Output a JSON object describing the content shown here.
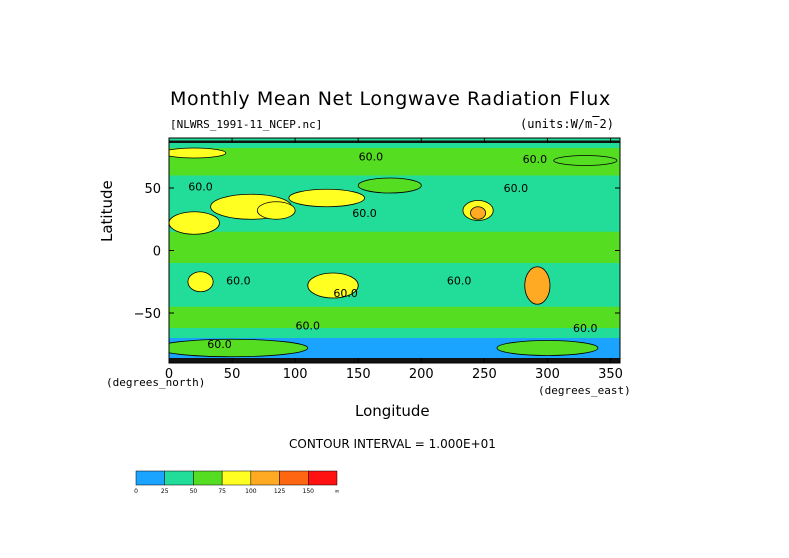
{
  "chart_data": {
    "type": "heatmap",
    "title": "Monthly Mean Net Longwave Radiation Flux",
    "subtitle_left": "[NLWRS_1991-11_NCEP.nc]",
    "units_text": "(units:W/m^-2)",
    "xlabel": "Longitude",
    "ylabel": "Latitude",
    "x_units_text": "(degrees_east)",
    "y_units_text": "(degrees_north)",
    "xlim": [
      0,
      357.5
    ],
    "ylim": [
      -90,
      90
    ],
    "x_ticks": [
      0,
      50,
      100,
      150,
      200,
      250,
      300,
      350
    ],
    "y_ticks": [
      50,
      0,
      -50
    ],
    "y_tick_labels": [
      "50",
      "0",
      "−50"
    ],
    "contour_interval_text": "CONTOUR INTERVAL = 1.000E+01",
    "contour_labels": [
      {
        "lon": 25,
        "lat": 48,
        "text": "60.0"
      },
      {
        "lon": 160,
        "lat": 72,
        "text": "60.0"
      },
      {
        "lon": 290,
        "lat": 70,
        "text": "60.0"
      },
      {
        "lon": 275,
        "lat": 47,
        "text": "60.0"
      },
      {
        "lon": 155,
        "lat": 27,
        "text": "60.0"
      },
      {
        "lon": 55,
        "lat": -27,
        "text": "60.0"
      },
      {
        "lon": 140,
        "lat": -37,
        "text": "60.0"
      },
      {
        "lon": 230,
        "lat": -27,
        "text": "60.0"
      },
      {
        "lon": 110,
        "lat": -63,
        "text": "60.0"
      },
      {
        "lon": 40,
        "lat": -78,
        "text": "60.0"
      },
      {
        "lon": 330,
        "lat": -65,
        "text": "60.0"
      }
    ],
    "colorbar": {
      "levels": [
        "0",
        "25",
        "50",
        "75",
        "100",
        "125",
        "150",
        "∞"
      ],
      "colors": [
        "#1aa3ff",
        "#22dd99",
        "#55dd22",
        "#ffff22",
        "#ffaa22",
        "#ff6611",
        "#ff1111"
      ]
    },
    "fields": [
      {
        "value": 40,
        "shape": "band",
        "lat_min": -90,
        "lat_max": 90
      },
      {
        "value": 55,
        "shape": "band",
        "lat_min": 60,
        "lat_max": 82
      },
      {
        "value": 55,
        "shape": "band",
        "lat_min": -10,
        "lat_max": 15
      },
      {
        "value": 55,
        "shape": "band",
        "lat_min": -62,
        "lat_max": -45
      },
      {
        "value": 35,
        "shape": "band",
        "lat_min": 82,
        "lat_max": 90
      },
      {
        "value": 20,
        "shape": "band",
        "lat_min": -90,
        "lat_max": -70
      },
      {
        "value": 80,
        "shape": "ellipse",
        "lon": 65,
        "lat": 35,
        "rx": 32,
        "ry": 10
      },
      {
        "value": 95,
        "shape": "ellipse",
        "lon": 85,
        "lat": 32,
        "rx": 15,
        "ry": 7
      },
      {
        "value": 75,
        "shape": "ellipse",
        "lon": 125,
        "lat": 42,
        "rx": 30,
        "ry": 7
      },
      {
        "value": 90,
        "shape": "ellipse",
        "lon": 20,
        "lat": 22,
        "rx": 20,
        "ry": 9
      },
      {
        "value": 80,
        "shape": "ellipse",
        "lon": 245,
        "lat": 32,
        "rx": 12,
        "ry": 8
      },
      {
        "value": 100,
        "shape": "ellipse",
        "lon": 245,
        "lat": 30,
        "rx": 6,
        "ry": 5
      },
      {
        "value": 90,
        "shape": "ellipse",
        "lon": 25,
        "lat": -25,
        "rx": 10,
        "ry": 8
      },
      {
        "value": 95,
        "shape": "ellipse",
        "lon": 130,
        "lat": -28,
        "rx": 20,
        "ry": 10
      },
      {
        "value": 100,
        "shape": "ellipse",
        "lon": 292,
        "lat": -28,
        "rx": 10,
        "ry": 15
      },
      {
        "value": 70,
        "shape": "ellipse",
        "lon": 50,
        "lat": -78,
        "rx": 60,
        "ry": 7
      },
      {
        "value": 70,
        "shape": "ellipse",
        "lon": 300,
        "lat": -78,
        "rx": 40,
        "ry": 6
      },
      {
        "value": 75,
        "shape": "ellipse",
        "lon": 20,
        "lat": 78,
        "rx": 25,
        "ry": 4
      },
      {
        "value": 70,
        "shape": "ellipse",
        "lon": 330,
        "lat": 72,
        "rx": 25,
        "ry": 4
      },
      {
        "value": 65,
        "shape": "ellipse",
        "lon": 175,
        "lat": 52,
        "rx": 25,
        "ry": 6
      }
    ]
  }
}
